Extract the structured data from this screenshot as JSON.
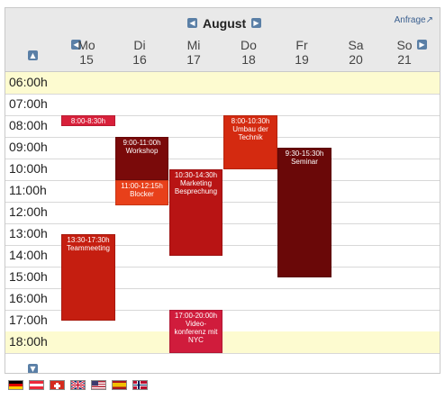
{
  "header": {
    "month": "August",
    "anfrage": "Anfrage↗",
    "prev_month_icon": "arrow-left",
    "next_month_icon": "arrow-right"
  },
  "days": [
    {
      "name": "Mo",
      "date": "15"
    },
    {
      "name": "Di",
      "date": "16"
    },
    {
      "name": "Mi",
      "date": "17"
    },
    {
      "name": "Do",
      "date": "18"
    },
    {
      "name": "Fr",
      "date": "19"
    },
    {
      "name": "Sa",
      "date": "20"
    },
    {
      "name": "So",
      "date": "21"
    }
  ],
  "times": [
    "06:00h",
    "07:00h",
    "08:00h",
    "09:00h",
    "10:00h",
    "11:00h",
    "12:00h",
    "13:00h",
    "14:00h",
    "15:00h",
    "16:00h",
    "17:00h",
    "18:00h"
  ],
  "highlighted_times": [
    "06:00h",
    "18:00h"
  ],
  "events": [
    {
      "time": "8:00-8:30h",
      "title": "",
      "color": "#d8203a"
    },
    {
      "time": "9:00-11:00h",
      "title": "Workshop",
      "color": "#7a0a0a"
    },
    {
      "time": "11:00-12:15h",
      "title": "Blocker",
      "color": "#e8401a"
    },
    {
      "time": "10:30-14:30h",
      "title": "Marketing Besprechung",
      "color": "#b81414"
    },
    {
      "time": "8:00-10:30h",
      "title": "Umbau der Technik",
      "color": "#d42a10"
    },
    {
      "time": "9:30-15:30h",
      "title": "Seminar",
      "color": "#6a0808"
    },
    {
      "time": "13:30-17:30h",
      "title": "Teammeeting",
      "color": "#c51e10"
    },
    {
      "time": "17:00-20:00h",
      "title": "Video-konferenz mit NYC",
      "color": "#d01c3c"
    }
  ],
  "flags": [
    "de",
    "at",
    "ch",
    "gb",
    "us",
    "es",
    "no"
  ]
}
